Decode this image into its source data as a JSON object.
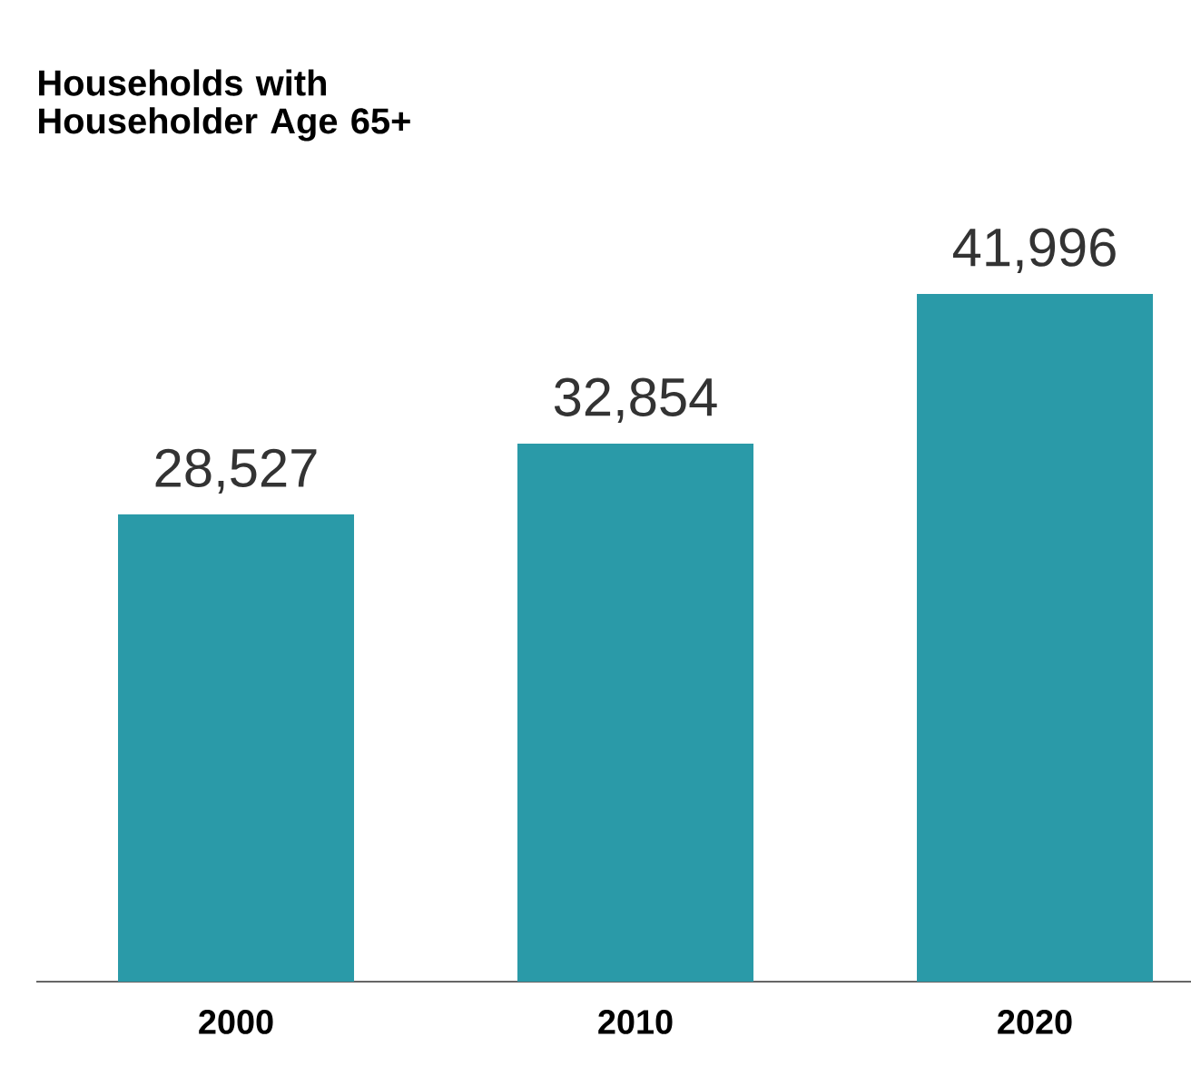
{
  "chart_data": {
    "type": "bar",
    "title": "Households with Householder Age 65+",
    "categories": [
      "2000",
      "2010",
      "2020"
    ],
    "values": [
      28527,
      32854,
      41996
    ],
    "value_labels": [
      "28,527",
      "32,854",
      "41,996"
    ],
    "color": "#2a9aa8"
  }
}
